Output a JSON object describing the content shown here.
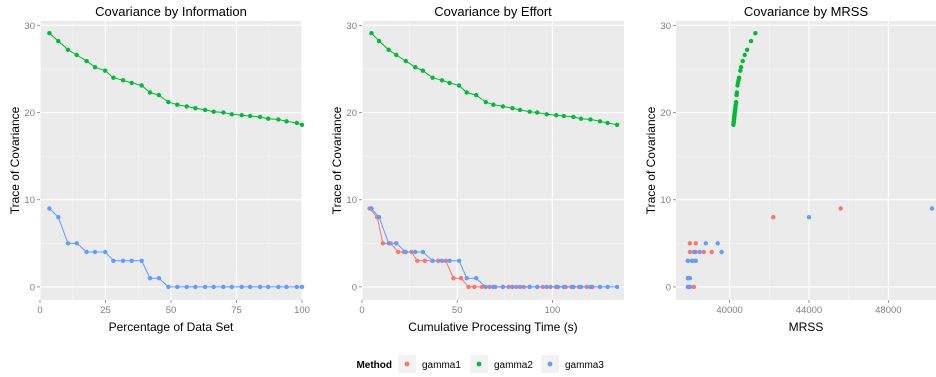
{
  "chart_data": [
    {
      "type": "line",
      "title": "Covariance by Information",
      "xlabel": "Percentage of Data Set",
      "ylabel": "Trace of Covariance",
      "xlim": [
        0,
        100
      ],
      "ylim": [
        -1.5,
        30.5
      ],
      "x_ticks": [
        0,
        25,
        50,
        75,
        100
      ],
      "y_ticks": [
        0,
        10,
        20,
        30
      ],
      "grid": true,
      "series": [
        {
          "name": "gamma2",
          "x": [
            3.6,
            7,
            10.7,
            14,
            17.8,
            21,
            24.9,
            28,
            31.7,
            35,
            38.8,
            42,
            45.4,
            49,
            52.4,
            56,
            59.3,
            63,
            66.3,
            70,
            73.2,
            77,
            80.2,
            84,
            87.1,
            91,
            94.1,
            98,
            100
          ],
          "y": [
            29.1,
            28.2,
            27.2,
            26.6,
            25.9,
            25.2,
            24.8,
            24.0,
            23.7,
            23.4,
            23.1,
            22.3,
            22.0,
            21.2,
            20.9,
            20.7,
            20.5,
            20.3,
            20.1,
            20.0,
            19.8,
            19.7,
            19.6,
            19.5,
            19.3,
            19.2,
            19.0,
            18.8,
            18.6
          ]
        },
        {
          "name": "gamma3",
          "x": [
            3.6,
            7,
            10.7,
            14,
            17.8,
            21,
            24.9,
            28,
            31.7,
            35,
            38.8,
            42,
            45.4,
            49,
            52.4,
            56,
            59.3,
            63,
            66.3,
            70,
            73.2,
            77,
            80.2,
            84,
            87.1,
            91,
            94.1,
            98,
            100
          ],
          "y": [
            9,
            8,
            5,
            5,
            4,
            4,
            4,
            3,
            3,
            3,
            3,
            1,
            1,
            0,
            0,
            0,
            0,
            0,
            0,
            0,
            0,
            0,
            0,
            0,
            0,
            0,
            0,
            0,
            0
          ]
        }
      ]
    },
    {
      "type": "line",
      "title": "Covariance by Effort",
      "xlabel": "Cumulative Processing Time (s)",
      "ylabel": "Trace of Covariance",
      "xlim": [
        0,
        137.6
      ],
      "ylim": [
        -1.5,
        30.5
      ],
      "x_ticks": [
        0,
        50,
        100
      ],
      "y_ticks": [
        0,
        10,
        20,
        30
      ],
      "grid": true,
      "series": [
        {
          "name": "gamma1",
          "x": [
            4,
            8,
            11,
            15,
            19,
            22,
            26,
            29,
            33,
            37,
            40,
            44,
            48,
            52,
            56,
            59,
            63,
            67,
            70,
            74,
            77,
            81,
            85,
            88,
            92,
            95,
            99,
            103,
            107,
            110,
            114,
            118,
            121
          ],
          "y": [
            9,
            8,
            5,
            5,
            4,
            4,
            4,
            3,
            3,
            3,
            3,
            3,
            1,
            1,
            0,
            0,
            0,
            0,
            0,
            0,
            0,
            0,
            0,
            0,
            0,
            0,
            0,
            0,
            0,
            0,
            0,
            0,
            0
          ]
        },
        {
          "name": "gamma2",
          "x": [
            5,
            9,
            14,
            18,
            23,
            28,
            32,
            37,
            42,
            46,
            51,
            55,
            60,
            65,
            69,
            74,
            79,
            83,
            88,
            92,
            97,
            102,
            106,
            111,
            115,
            120,
            125,
            129,
            134
          ],
          "y": [
            29.1,
            28.2,
            27.2,
            26.6,
            25.9,
            25.2,
            24.8,
            24.0,
            23.7,
            23.4,
            23.1,
            22.3,
            22.0,
            21.2,
            20.9,
            20.7,
            20.5,
            20.3,
            20.1,
            20.0,
            19.8,
            19.7,
            19.6,
            19.5,
            19.3,
            19.2,
            19.0,
            18.8,
            18.6
          ]
        },
        {
          "name": "gamma3",
          "x": [
            5,
            9,
            14,
            18,
            23,
            28,
            32,
            37,
            42,
            46,
            51,
            55,
            60,
            65,
            69,
            74,
            79,
            83,
            88,
            92,
            97,
            102,
            106,
            111,
            115,
            120,
            125,
            129,
            134
          ],
          "y": [
            9,
            8,
            5,
            5,
            4,
            4,
            4,
            3,
            3,
            3,
            3,
            1,
            1,
            0,
            0,
            0,
            0,
            0,
            0,
            0,
            0,
            0,
            0,
            0,
            0,
            0,
            0,
            0,
            0
          ]
        }
      ]
    },
    {
      "type": "scatter",
      "title": "Covariance by MRSS",
      "xlabel": "MRSS",
      "ylabel": "Trace of Covariance",
      "xlim": [
        37300,
        50400
      ],
      "ylim": [
        -1.5,
        30.5
      ],
      "x_ticks": [
        40000,
        44000,
        48000
      ],
      "y_ticks": [
        0,
        10,
        20,
        30
      ],
      "grid": true,
      "series": [
        {
          "name": "gamma1",
          "points": [
            [
              45600,
              9
            ],
            [
              42200,
              8
            ],
            [
              38000,
              5
            ],
            [
              38300,
              5
            ],
            [
              38000,
              4
            ],
            [
              38300,
              4
            ],
            [
              38700,
              4
            ],
            [
              39100,
              4
            ],
            [
              37900,
              3
            ],
            [
              38200,
              3
            ],
            [
              37900,
              1
            ],
            [
              38000,
              0
            ],
            [
              38200,
              0
            ],
            [
              37900,
              0
            ]
          ]
        },
        {
          "name": "gamma2",
          "points": [
            [
              41300,
              29.1
            ],
            [
              41080,
              28.2
            ],
            [
              40880,
              27.2
            ],
            [
              40760,
              26.6
            ],
            [
              40660,
              25.9
            ],
            [
              40580,
              25.2
            ],
            [
              40540,
              24.8
            ],
            [
              40480,
              24.0
            ],
            [
              40450,
              23.7
            ],
            [
              40420,
              23.4
            ],
            [
              40400,
              23.1
            ],
            [
              40370,
              22.3
            ],
            [
              40350,
              22.0
            ],
            [
              40330,
              21.2
            ],
            [
              40310,
              20.9
            ],
            [
              40300,
              20.7
            ],
            [
              40290,
              20.5
            ],
            [
              40280,
              20.3
            ],
            [
              40270,
              20.1
            ],
            [
              40260,
              20.0
            ],
            [
              40250,
              19.8
            ],
            [
              40245,
              19.7
            ],
            [
              40240,
              19.6
            ],
            [
              40235,
              19.5
            ],
            [
              40225,
              19.3
            ],
            [
              40220,
              19.2
            ],
            [
              40210,
              19.0
            ],
            [
              40200,
              18.8
            ],
            [
              40190,
              18.6
            ]
          ]
        },
        {
          "name": "gamma3",
          "points": [
            [
              50200,
              9
            ],
            [
              44000,
              8
            ],
            [
              38800,
              5
            ],
            [
              39400,
              5
            ],
            [
              38200,
              4
            ],
            [
              38500,
              4
            ],
            [
              39600,
              4
            ],
            [
              37900,
              3
            ],
            [
              38100,
              3
            ],
            [
              38300,
              3
            ],
            [
              37900,
              1
            ],
            [
              38000,
              1
            ],
            [
              37900,
              0
            ],
            [
              38000,
              0
            ]
          ]
        }
      ]
    }
  ],
  "legend": {
    "title": "Method",
    "placement": "bottom",
    "items": [
      {
        "name": "gamma1",
        "color": "#F8766D"
      },
      {
        "name": "gamma2",
        "color": "#00BA38"
      },
      {
        "name": "gamma3",
        "color": "#619CFF"
      }
    ]
  },
  "colors": {
    "panel_bg": "#EBEBEB",
    "grid_major": "#FFFFFF",
    "grid_minor": "#F5F5F5",
    "tick_text": "#7F7F7F",
    "text": "#000000"
  }
}
